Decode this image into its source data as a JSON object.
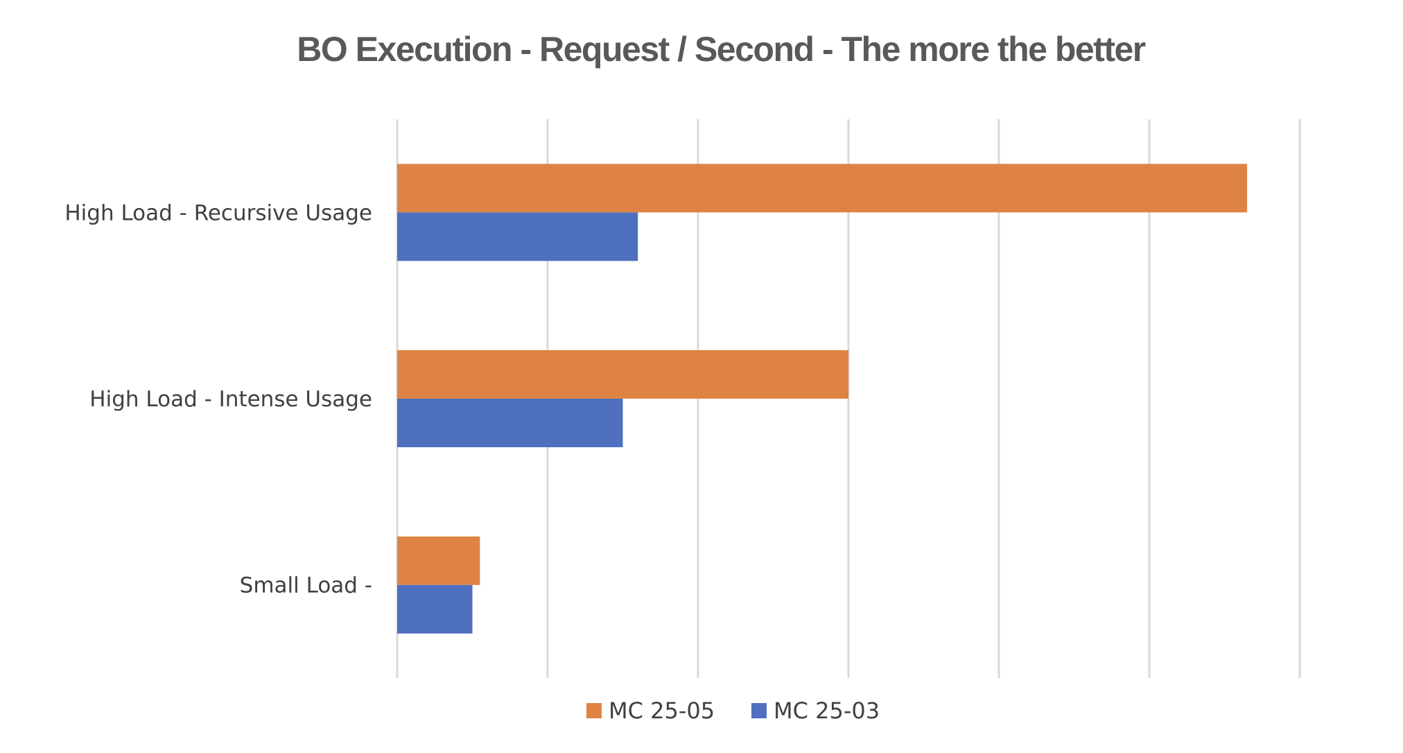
{
  "chart_data": {
    "type": "bar",
    "orientation": "horizontal",
    "title": "BO Execution - Request / Second - The more the better",
    "xlabel": "",
    "ylabel": "",
    "categories": [
      "High Load - Recursive Usage",
      "High Load - Intense Usage",
      "Small Load -"
    ],
    "series": [
      {
        "name": "MC 25-05",
        "color": "#DE8344",
        "values": [
          565,
          300,
          55
        ]
      },
      {
        "name": "MC 25-03",
        "color": "#4E70BE",
        "values": [
          160,
          150,
          50
        ]
      }
    ],
    "xlim": [
      0,
      600
    ],
    "gridlines": "vertical",
    "tick_labels_visible": false,
    "legend_position": "bottom"
  }
}
